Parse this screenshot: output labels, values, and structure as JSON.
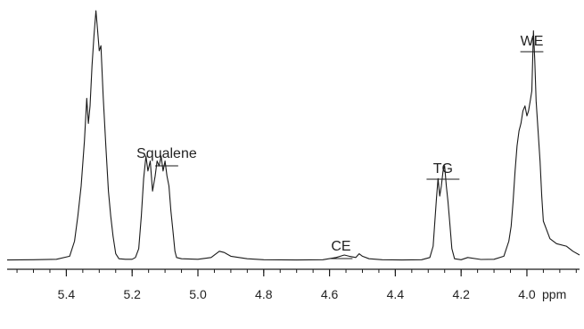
{
  "chart_data": {
    "type": "line",
    "title": "",
    "xlabel": "ppm",
    "ylabel": "",
    "x_reversed": true,
    "xlim": [
      5.58,
      3.84
    ],
    "ylim": [
      0,
      100
    ],
    "x_ticks": [
      "5.4",
      "5.2",
      "5.0",
      "4.8",
      "4.6",
      "4.4",
      "4.2",
      "4.0"
    ],
    "grid": false,
    "legend": "none",
    "series": [
      {
        "color": "#1a1a1a",
        "x": [
          5.58,
          5.5,
          5.43,
          5.39,
          5.375,
          5.365,
          5.355,
          5.345,
          5.338,
          5.333,
          5.328,
          5.322,
          5.316,
          5.31,
          5.305,
          5.3,
          5.295,
          5.288,
          5.28,
          5.272,
          5.265,
          5.258,
          5.25,
          5.24,
          5.22,
          5.2,
          5.19,
          5.18,
          5.172,
          5.165,
          5.158,
          5.152,
          5.145,
          5.138,
          5.13,
          5.124,
          5.118,
          5.112,
          5.106,
          5.1,
          5.094,
          5.088,
          5.082,
          5.076,
          5.07,
          5.065,
          5.05,
          5.0,
          4.96,
          4.935,
          4.92,
          4.9,
          4.85,
          4.8,
          4.7,
          4.62,
          4.58,
          4.555,
          4.54,
          4.52,
          4.51,
          4.5,
          4.48,
          4.44,
          4.38,
          4.32,
          4.295,
          4.285,
          4.275,
          4.27,
          4.265,
          4.26,
          4.255,
          4.25,
          4.245,
          4.24,
          4.235,
          4.228,
          4.22,
          4.2,
          4.18,
          4.14,
          4.1,
          4.07,
          4.055,
          4.048,
          4.042,
          4.036,
          4.03,
          4.024,
          4.018,
          4.012,
          4.006,
          4.0,
          3.995,
          3.99,
          3.985,
          3.98,
          3.976,
          3.972,
          3.966,
          3.96,
          3.955,
          3.95,
          3.93,
          3.91,
          3.88,
          3.86,
          3.84
        ],
        "y": [
          0.5,
          0.6,
          0.8,
          2,
          8,
          18,
          30,
          48,
          65,
          55,
          62,
          78,
          90,
          100,
          92,
          84,
          86,
          66,
          46,
          28,
          18,
          10,
          3,
          1,
          0.8,
          0.8,
          1.5,
          5,
          18,
          33,
          42,
          36,
          40,
          28,
          34,
          40,
          38,
          42,
          36,
          40,
          34,
          30,
          20,
          12,
          4,
          1.5,
          1,
          0.8,
          1.5,
          4,
          3.5,
          2,
          1,
          0.6,
          0.5,
          0.6,
          1.5,
          2.5,
          2,
          1.5,
          3,
          2,
          1,
          0.6,
          0.5,
          0.6,
          1.5,
          6,
          25,
          33,
          26,
          30,
          36,
          38,
          30,
          24,
          16,
          5,
          1,
          0.6,
          1.5,
          0.7,
          0.8,
          2,
          8,
          14,
          24,
          36,
          46,
          52,
          55,
          60,
          62,
          58,
          60,
          64,
          68,
          92,
          80,
          64,
          52,
          40,
          26,
          16,
          9,
          7,
          6,
          4,
          2.5
        ]
      }
    ],
    "annotations": [
      "Squalene",
      "TG",
      "CE",
      "WE"
    ]
  }
}
